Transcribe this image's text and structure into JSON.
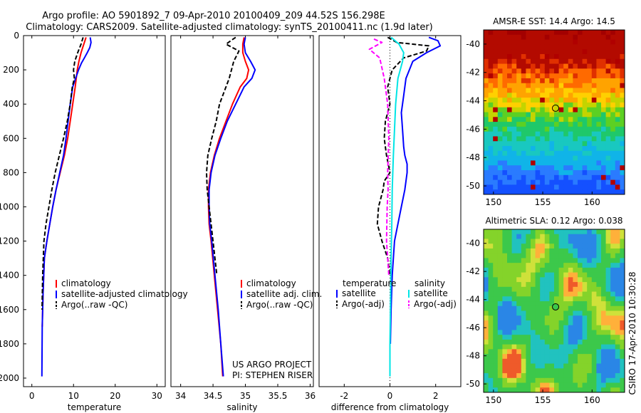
{
  "title": {
    "line1": "Argo profile: AO 5901892_7 09-Apr-2010 20100409_209 44.52S 156.298E",
    "line2": "Climatology: CARS2009. Satellite-adjusted climatology: synTS_20100411.nc (1.9d later)"
  },
  "credit": {
    "line1": "US ARGO PROJECT",
    "line2": "PI: STEPHEN RISER"
  },
  "side_label": "CSIRO 17-Apr-2010 10:30:28",
  "colors": {
    "climatology": "#ff0000",
    "satellite": "#0000ff",
    "argo": "#000000",
    "sal_satellite": "#00e5e5",
    "sal_argo": "#ff00ff"
  },
  "chart_data": [
    {
      "type": "line",
      "xlabel": "temperature",
      "ylabel": "",
      "xlim": [
        -2,
        32
      ],
      "ylim": [
        2050,
        0
      ],
      "xticks": [
        0,
        10,
        20,
        30
      ],
      "xtick_labels": [
        "0",
        "10",
        "20",
        "30"
      ],
      "yticks": [
        0,
        200,
        400,
        600,
        800,
        1000,
        1200,
        1400,
        1600,
        1800,
        2000
      ],
      "ytick_labels": [
        "0",
        "200",
        "400",
        "600",
        "800",
        "1000",
        "1200",
        "1400",
        "1600",
        "1800",
        "2000"
      ],
      "legend": [
        "climatology",
        "satellite-adjusted climatology",
        "Argo(..raw -QC)"
      ],
      "legend_placement": "lower-right",
      "series": [
        {
          "name": "climatology",
          "color": "#ff0000",
          "dash": false,
          "x": [
            13.0,
            12.6,
            12.2,
            11.8,
            11.3,
            10.9,
            10.4,
            9.8,
            9.2,
            8.6,
            7.8,
            6.8,
            5.8,
            5.0,
            4.3,
            3.6,
            3.0,
            2.7,
            2.5
          ],
          "y": [
            10,
            40,
            70,
            100,
            150,
            200,
            300,
            400,
            500,
            600,
            700,
            800,
            900,
            1000,
            1100,
            1200,
            1300,
            1500,
            1700
          ]
        },
        {
          "name": "satellite-adjusted climatology",
          "color": "#0000ff",
          "dash": false,
          "x": [
            14.0,
            14.2,
            13.9,
            13.3,
            12.6,
            11.9,
            11.2,
            10.5,
            9.8,
            9.2,
            8.7,
            8.2,
            7.6,
            6.7,
            5.8,
            5.0,
            4.3,
            3.6,
            3.0,
            2.7,
            2.5,
            2.4
          ],
          "y": [
            10,
            40,
            70,
            100,
            130,
            160,
            200,
            250,
            300,
            400,
            500,
            600,
            700,
            800,
            900,
            1000,
            1100,
            1200,
            1300,
            1500,
            1700,
            1990
          ]
        },
        {
          "name": "Argo(..raw -QC)",
          "color": "#000000",
          "dash": true,
          "x": [
            12.3,
            11.8,
            11.0,
            10.3,
            10.0,
            10.2,
            9.7,
            9.2,
            8.5,
            7.6,
            6.6,
            5.6,
            4.8,
            4.1,
            3.4,
            2.9,
            2.6,
            2.45
          ],
          "y": [
            10,
            50,
            100,
            150,
            200,
            250,
            300,
            400,
            500,
            600,
            700,
            800,
            900,
            1000,
            1100,
            1200,
            1400,
            1600
          ]
        }
      ]
    },
    {
      "type": "line",
      "xlabel": "salinity",
      "ylabel": "",
      "xlim": [
        33.85,
        36.05
      ],
      "ylim": [
        2050,
        0
      ],
      "xticks": [
        34,
        34.5,
        35,
        35.5,
        36
      ],
      "xtick_labels": [
        "34",
        "34.5",
        "35",
        "35.5",
        "36"
      ],
      "yticks": [],
      "legend": [
        "climatology",
        "satellite adj. clim.",
        "Argo(..raw -QC)"
      ],
      "legend_placement": "lower-right",
      "series": [
        {
          "name": "climatology",
          "color": "#ff0000",
          "dash": false,
          "x": [
            34.98,
            34.96,
            34.96,
            35.0,
            35.05,
            35.02,
            34.92,
            34.8,
            34.7,
            34.6,
            34.52,
            34.46,
            34.43,
            34.43,
            34.44,
            34.47,
            34.52,
            34.57,
            34.62,
            34.65
          ],
          "y": [
            10,
            50,
            100,
            150,
            200,
            250,
            300,
            400,
            500,
            600,
            700,
            800,
            900,
            1000,
            1100,
            1200,
            1400,
            1600,
            1800,
            1990
          ]
        },
        {
          "name": "satellite adj. clim.",
          "color": "#0000ff",
          "dash": false,
          "x": [
            35.0,
            34.98,
            35.0,
            35.08,
            35.15,
            35.1,
            34.98,
            34.85,
            34.72,
            34.62,
            34.53,
            34.47,
            34.44,
            34.44,
            34.45,
            34.48,
            34.53,
            34.58,
            34.62,
            34.66
          ],
          "y": [
            10,
            50,
            100,
            150,
            200,
            250,
            300,
            400,
            500,
            600,
            700,
            800,
            900,
            1000,
            1100,
            1200,
            1400,
            1600,
            1800,
            1990
          ]
        },
        {
          "name": "Argo(..raw -QC)",
          "color": "#000000",
          "dash": true,
          "x": [
            34.85,
            34.7,
            34.9,
            34.82,
            34.75,
            34.65,
            34.6,
            34.55,
            34.48,
            34.42,
            34.4,
            34.41,
            34.44,
            34.5,
            34.56
          ],
          "y": [
            10,
            50,
            90,
            150,
            250,
            350,
            400,
            500,
            600,
            700,
            800,
            900,
            1000,
            1200,
            1400
          ]
        }
      ]
    },
    {
      "type": "line",
      "xlabel": "difference from climatology",
      "ylabel": "",
      "xlim": [
        -3.1,
        3.1
      ],
      "ylim": [
        2050,
        0
      ],
      "xticks": [
        -2,
        0,
        2
      ],
      "xtick_labels": [
        "-2",
        "0",
        "2"
      ],
      "yticks": [],
      "legend_groups": [
        {
          "heading": "temperature",
          "items": [
            "satellite",
            "Argo(-adj)"
          ]
        },
        {
          "heading": "salinity",
          "items": [
            "satellite",
            "Argo(-adj)"
          ]
        }
      ],
      "legend_placement": "lower-center",
      "zero_line": "dotted",
      "series": [
        {
          "name": "temperature satellite",
          "color": "#0000ff",
          "dash": false,
          "x": [
            1.7,
            2.1,
            2.2,
            1.6,
            1.0,
            0.7,
            0.6,
            0.5,
            0.55,
            0.6,
            0.65,
            0.75,
            0.75,
            0.65,
            0.5,
            0.35,
            0.2,
            0.1,
            0.05,
            0.02
          ],
          "y": [
            10,
            30,
            60,
            100,
            150,
            250,
            350,
            450,
            550,
            650,
            700,
            750,
            800,
            900,
            1000,
            1100,
            1200,
            1400,
            1600,
            1800
          ]
        },
        {
          "name": "temperature Argo(-adj)",
          "color": "#000000",
          "dash": true,
          "x": [
            -0.1,
            0.3,
            1.7,
            1.6,
            0.6,
            0.1,
            -0.1,
            0.0,
            -0.2,
            -0.25,
            -0.15,
            0.0,
            -0.25,
            -0.3,
            -0.5,
            -0.55,
            -0.35,
            -0.1,
            0.0
          ],
          "y": [
            10,
            40,
            60,
            90,
            130,
            200,
            300,
            400,
            500,
            600,
            700,
            800,
            850,
            900,
            1000,
            1100,
            1200,
            1300,
            1400
          ]
        },
        {
          "name": "salinity satellite",
          "color": "#00e5e5",
          "dash": false,
          "x": [
            0.05,
            0.4,
            0.6,
            0.55,
            0.35,
            0.25,
            0.2,
            0.15,
            0.1,
            0.08,
            0.05,
            0.03,
            0.0,
            0.0
          ],
          "y": [
            10,
            50,
            100,
            150,
            250,
            400,
            550,
            700,
            900,
            1100,
            1300,
            1500,
            1800,
            1990
          ]
        },
        {
          "name": "salinity Argo(-adj)",
          "color": "#ff00ff",
          "dash": true,
          "x": [
            -0.7,
            -0.35,
            -0.9,
            -0.45,
            -0.25,
            -0.1,
            -0.05,
            -0.1,
            -0.08,
            -0.12,
            -0.15,
            -0.05
          ],
          "y": [
            20,
            40,
            80,
            130,
            250,
            400,
            600,
            800,
            900,
            1000,
            1200,
            1400
          ]
        }
      ]
    },
    {
      "type": "heatmap",
      "title": "AMSR-E SST: 14.4 Argo: 14.5",
      "xlim": [
        149,
        163.3
      ],
      "ylim": [
        -50.6,
        -39
      ],
      "xticks": [
        150,
        155,
        160
      ],
      "xtick_labels": [
        "150",
        "155",
        "160"
      ],
      "yticks": [
        -40,
        -42,
        -44,
        -46,
        -48,
        -50
      ],
      "ytick_labels": [
        "-40",
        "-42",
        "-44",
        "-46",
        "-48",
        "-50"
      ],
      "marker": {
        "lon": 156.298,
        "lat": -44.52
      }
    },
    {
      "type": "heatmap",
      "title": "Altimetric SLA: 0.12 Argo: 0.038",
      "xlim": [
        149,
        163.3
      ],
      "ylim": [
        -50.6,
        -39
      ],
      "xticks": [
        150,
        155,
        160
      ],
      "xtick_labels": [
        "150",
        "155",
        "160"
      ],
      "yticks": [
        -40,
        -42,
        -44,
        -46,
        -48,
        -50
      ],
      "ytick_labels": [
        "-40",
        "-42",
        "-44",
        "-46",
        "-48",
        "-50"
      ],
      "marker": {
        "lon": 156.298,
        "lat": -44.52
      }
    }
  ]
}
